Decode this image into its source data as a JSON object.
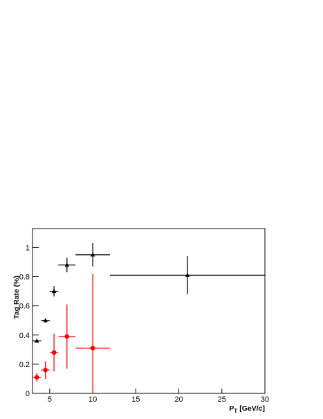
{
  "chart_data": {
    "type": "errorbar",
    "y_label": "Tag Rate (%)",
    "x_label": [
      "P",
      "T",
      "[GeV/c]"
    ],
    "xlim": [
      3,
      30
    ],
    "xticks": [
      5,
      10,
      15,
      20,
      25,
      30
    ],
    "ylim": [
      0,
      1.13
    ],
    "yticks": [
      0,
      0.2,
      0.4,
      0.6,
      0.8,
      1
    ],
    "series": [
      {
        "color": "#000000",
        "marker": "triangle",
        "x": [
          3.5,
          4.5,
          5.5,
          7,
          10,
          21
        ],
        "x_errors": [
          0.5,
          0.5,
          0.5,
          1,
          2,
          9
        ],
        "values": [
          0.36,
          0.5,
          0.7,
          0.88,
          0.95,
          0.81
        ],
        "y_errors": [
          0.01,
          0.015,
          0.035,
          0.05,
          0.08,
          0.13
        ]
      },
      {
        "color": "#ff0000",
        "marker": "circle",
        "x": [
          3.5,
          4.5,
          5.5,
          7,
          10
        ],
        "x_errors": [
          0.5,
          0.5,
          0.5,
          1,
          2
        ],
        "values": [
          0.11,
          0.16,
          0.28,
          0.39,
          0.31
        ],
        "y_errors": [
          0.03,
          0.06,
          0.13,
          0.22,
          0.51
        ]
      }
    ]
  }
}
